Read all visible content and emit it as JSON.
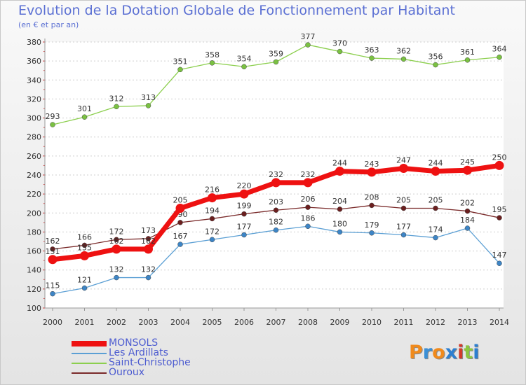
{
  "title": "Evolution de la Dotation Globale de Fonctionnement par Habitant",
  "subtitle": "(en € et par an)",
  "logo": {
    "text": "Proxiti",
    "letters": [
      "P",
      "r",
      "o",
      "x",
      "i",
      "t",
      "i"
    ],
    "colors": [
      "#f08a1c",
      "#3a8fd6",
      "#f08a1c",
      "#2d7fd0",
      "#d23a2a",
      "#8cc63f",
      "#2d7fd0"
    ]
  },
  "chart_data": {
    "type": "line",
    "x": [
      "2000",
      "2001",
      "2002",
      "2003",
      "2004",
      "2005",
      "2006",
      "2007",
      "2008",
      "2009",
      "2010",
      "2011",
      "2012",
      "2013",
      "2014"
    ],
    "ylim": [
      100,
      380
    ],
    "yticks": [
      100,
      120,
      140,
      160,
      180,
      200,
      220,
      240,
      260,
      280,
      300,
      320,
      340,
      360,
      380
    ],
    "grid": "horizontal dotted",
    "legend_position": "bottom-left",
    "series": [
      {
        "name": "Saint-Christophe",
        "color": "#8ccf4e",
        "point_color": "#7ac142",
        "width": 1.3,
        "marker": 3.5,
        "values": [
          293,
          301,
          312,
          313,
          351,
          358,
          354,
          359,
          377,
          370,
          363,
          362,
          356,
          361,
          364
        ]
      },
      {
        "name": "Les Ardillats",
        "color": "#5b9fd4",
        "point_color": "#3d85c6",
        "width": 1.3,
        "marker": 3.5,
        "values": [
          115,
          121,
          132,
          132,
          167,
          172,
          177,
          182,
          186,
          180,
          179,
          177,
          174,
          184,
          147
        ]
      },
      {
        "name": "Ouroux",
        "color": "#7a2a2a",
        "point_color": "#6b1f1f",
        "width": 1.3,
        "marker": 3.5,
        "values": [
          162,
          166,
          172,
          173,
          190,
          194,
          199,
          203,
          206,
          204,
          208,
          205,
          205,
          202,
          195
        ]
      },
      {
        "name": "MONSOLS",
        "color": "#ee1111",
        "point_color": "#ee1111",
        "width": 7,
        "marker": 6.5,
        "values": [
          151,
          155,
          162,
          162,
          205,
          216,
          220,
          232,
          232,
          244,
          243,
          247,
          244,
          245,
          250
        ]
      }
    ],
    "legend_order": [
      "MONSOLS",
      "Les Ardillats",
      "Saint-Christophe",
      "Ouroux"
    ]
  }
}
